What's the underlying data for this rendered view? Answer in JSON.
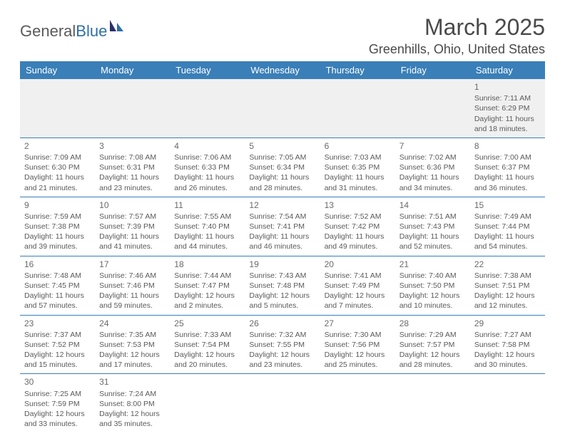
{
  "logo": {
    "text_gray": "General",
    "text_blue": "Blue"
  },
  "title": "March 2025",
  "location": "Greenhills, Ohio, United States",
  "colors": {
    "header_bg": "#3a7fb8",
    "header_text": "#ffffff",
    "border": "#3a7fb8",
    "body_text": "#5a5a5a",
    "empty_bg": "#f0f0f0"
  },
  "weekdays": [
    "Sunday",
    "Monday",
    "Tuesday",
    "Wednesday",
    "Thursday",
    "Friday",
    "Saturday"
  ],
  "weeks": [
    [
      null,
      null,
      null,
      null,
      null,
      null,
      {
        "n": "1",
        "sr": "Sunrise: 7:11 AM",
        "ss": "Sunset: 6:29 PM",
        "d1": "Daylight: 11 hours",
        "d2": "and 18 minutes."
      }
    ],
    [
      {
        "n": "2",
        "sr": "Sunrise: 7:09 AM",
        "ss": "Sunset: 6:30 PM",
        "d1": "Daylight: 11 hours",
        "d2": "and 21 minutes."
      },
      {
        "n": "3",
        "sr": "Sunrise: 7:08 AM",
        "ss": "Sunset: 6:31 PM",
        "d1": "Daylight: 11 hours",
        "d2": "and 23 minutes."
      },
      {
        "n": "4",
        "sr": "Sunrise: 7:06 AM",
        "ss": "Sunset: 6:33 PM",
        "d1": "Daylight: 11 hours",
        "d2": "and 26 minutes."
      },
      {
        "n": "5",
        "sr": "Sunrise: 7:05 AM",
        "ss": "Sunset: 6:34 PM",
        "d1": "Daylight: 11 hours",
        "d2": "and 28 minutes."
      },
      {
        "n": "6",
        "sr": "Sunrise: 7:03 AM",
        "ss": "Sunset: 6:35 PM",
        "d1": "Daylight: 11 hours",
        "d2": "and 31 minutes."
      },
      {
        "n": "7",
        "sr": "Sunrise: 7:02 AM",
        "ss": "Sunset: 6:36 PM",
        "d1": "Daylight: 11 hours",
        "d2": "and 34 minutes."
      },
      {
        "n": "8",
        "sr": "Sunrise: 7:00 AM",
        "ss": "Sunset: 6:37 PM",
        "d1": "Daylight: 11 hours",
        "d2": "and 36 minutes."
      }
    ],
    [
      {
        "n": "9",
        "sr": "Sunrise: 7:59 AM",
        "ss": "Sunset: 7:38 PM",
        "d1": "Daylight: 11 hours",
        "d2": "and 39 minutes."
      },
      {
        "n": "10",
        "sr": "Sunrise: 7:57 AM",
        "ss": "Sunset: 7:39 PM",
        "d1": "Daylight: 11 hours",
        "d2": "and 41 minutes."
      },
      {
        "n": "11",
        "sr": "Sunrise: 7:55 AM",
        "ss": "Sunset: 7:40 PM",
        "d1": "Daylight: 11 hours",
        "d2": "and 44 minutes."
      },
      {
        "n": "12",
        "sr": "Sunrise: 7:54 AM",
        "ss": "Sunset: 7:41 PM",
        "d1": "Daylight: 11 hours",
        "d2": "and 46 minutes."
      },
      {
        "n": "13",
        "sr": "Sunrise: 7:52 AM",
        "ss": "Sunset: 7:42 PM",
        "d1": "Daylight: 11 hours",
        "d2": "and 49 minutes."
      },
      {
        "n": "14",
        "sr": "Sunrise: 7:51 AM",
        "ss": "Sunset: 7:43 PM",
        "d1": "Daylight: 11 hours",
        "d2": "and 52 minutes."
      },
      {
        "n": "15",
        "sr": "Sunrise: 7:49 AM",
        "ss": "Sunset: 7:44 PM",
        "d1": "Daylight: 11 hours",
        "d2": "and 54 minutes."
      }
    ],
    [
      {
        "n": "16",
        "sr": "Sunrise: 7:48 AM",
        "ss": "Sunset: 7:45 PM",
        "d1": "Daylight: 11 hours",
        "d2": "and 57 minutes."
      },
      {
        "n": "17",
        "sr": "Sunrise: 7:46 AM",
        "ss": "Sunset: 7:46 PM",
        "d1": "Daylight: 11 hours",
        "d2": "and 59 minutes."
      },
      {
        "n": "18",
        "sr": "Sunrise: 7:44 AM",
        "ss": "Sunset: 7:47 PM",
        "d1": "Daylight: 12 hours",
        "d2": "and 2 minutes."
      },
      {
        "n": "19",
        "sr": "Sunrise: 7:43 AM",
        "ss": "Sunset: 7:48 PM",
        "d1": "Daylight: 12 hours",
        "d2": "and 5 minutes."
      },
      {
        "n": "20",
        "sr": "Sunrise: 7:41 AM",
        "ss": "Sunset: 7:49 PM",
        "d1": "Daylight: 12 hours",
        "d2": "and 7 minutes."
      },
      {
        "n": "21",
        "sr": "Sunrise: 7:40 AM",
        "ss": "Sunset: 7:50 PM",
        "d1": "Daylight: 12 hours",
        "d2": "and 10 minutes."
      },
      {
        "n": "22",
        "sr": "Sunrise: 7:38 AM",
        "ss": "Sunset: 7:51 PM",
        "d1": "Daylight: 12 hours",
        "d2": "and 12 minutes."
      }
    ],
    [
      {
        "n": "23",
        "sr": "Sunrise: 7:37 AM",
        "ss": "Sunset: 7:52 PM",
        "d1": "Daylight: 12 hours",
        "d2": "and 15 minutes."
      },
      {
        "n": "24",
        "sr": "Sunrise: 7:35 AM",
        "ss": "Sunset: 7:53 PM",
        "d1": "Daylight: 12 hours",
        "d2": "and 17 minutes."
      },
      {
        "n": "25",
        "sr": "Sunrise: 7:33 AM",
        "ss": "Sunset: 7:54 PM",
        "d1": "Daylight: 12 hours",
        "d2": "and 20 minutes."
      },
      {
        "n": "26",
        "sr": "Sunrise: 7:32 AM",
        "ss": "Sunset: 7:55 PM",
        "d1": "Daylight: 12 hours",
        "d2": "and 23 minutes."
      },
      {
        "n": "27",
        "sr": "Sunrise: 7:30 AM",
        "ss": "Sunset: 7:56 PM",
        "d1": "Daylight: 12 hours",
        "d2": "and 25 minutes."
      },
      {
        "n": "28",
        "sr": "Sunrise: 7:29 AM",
        "ss": "Sunset: 7:57 PM",
        "d1": "Daylight: 12 hours",
        "d2": "and 28 minutes."
      },
      {
        "n": "29",
        "sr": "Sunrise: 7:27 AM",
        "ss": "Sunset: 7:58 PM",
        "d1": "Daylight: 12 hours",
        "d2": "and 30 minutes."
      }
    ],
    [
      {
        "n": "30",
        "sr": "Sunrise: 7:25 AM",
        "ss": "Sunset: 7:59 PM",
        "d1": "Daylight: 12 hours",
        "d2": "and 33 minutes."
      },
      {
        "n": "31",
        "sr": "Sunrise: 7:24 AM",
        "ss": "Sunset: 8:00 PM",
        "d1": "Daylight: 12 hours",
        "d2": "and 35 minutes."
      },
      null,
      null,
      null,
      null,
      null
    ]
  ]
}
